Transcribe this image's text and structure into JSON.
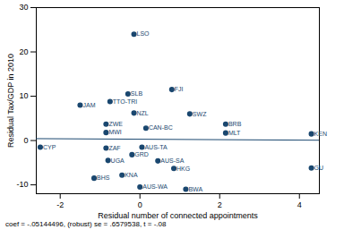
{
  "chart_data": {
    "type": "scatter",
    "x_label": "Residual number of connected appointments",
    "y_label": "Residual Tax/GDP in 2010",
    "caption": "coef = -.05144496, (robust) se = .6579538, t = -.08",
    "labels": [
      "LSO",
      "FJI",
      "SLB",
      "JAM",
      "TTO-TRI",
      "NZL",
      "SWZ",
      "ZWE",
      "BRB",
      "MLT",
      "KEN",
      "GU",
      "CYP",
      "MWI",
      "CAN-BC",
      "AUS-TA",
      "ZAF",
      "GRD",
      "HKG",
      "AUS-SA",
      "UGA",
      "KNA",
      "BHS",
      "BWA",
      "AUS-WA"
    ],
    "x": [
      -0.15,
      0.8,
      -0.3,
      -1.5,
      -0.75,
      -0.15,
      1.25,
      -0.85,
      2.15,
      2.15,
      4.3,
      4.3,
      -2.5,
      -0.85,
      0.15,
      0.05,
      -0.85,
      -0.2,
      0.85,
      0.45,
      -0.8,
      -0.45,
      -1.15,
      1.15,
      0.0
    ],
    "y": [
      24,
      11.5,
      10.5,
      8,
      8.8,
      6.2,
      6,
      3.7,
      3.7,
      1.7,
      1.5,
      -6.2,
      -1.5,
      1.8,
      2.8,
      -1.5,
      -1.7,
      -3.2,
      -6.3,
      -4.6,
      -4.5,
      -7.8,
      -8.5,
      -11,
      -10.5
    ],
    "fit": {
      "x": [
        -2.6,
        4.5
      ],
      "y": [
        0.43,
        0.07
      ]
    },
    "color": "#1a476f",
    "marker": "circle",
    "xlim": [
      -2.6,
      4.5
    ],
    "xticks": [
      -2,
      0,
      2,
      4
    ],
    "ylim": [
      -12,
      30
    ],
    "yticks": [
      -10,
      0,
      10,
      20,
      30
    ],
    "grid": false
  }
}
